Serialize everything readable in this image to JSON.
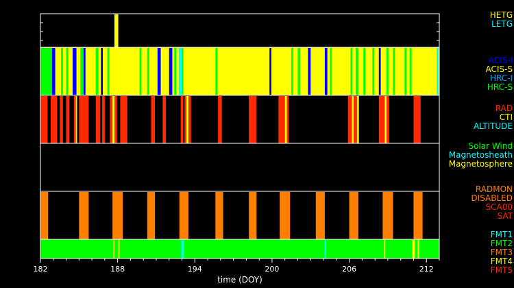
{
  "chart_data": {
    "type": "timeline",
    "xlabel": "time (DOY)",
    "xlim": [
      182,
      213
    ],
    "xticks": [
      182,
      188,
      194,
      200,
      206,
      212
    ],
    "panels": [
      {
        "key": "grating",
        "legend": [
          {
            "label": "HETG",
            "color": "#ffff00"
          },
          {
            "label": "LETG",
            "color": "#00ffff"
          }
        ],
        "background": null,
        "intervals": [
          {
            "start": 187.75,
            "end": 188.05,
            "color": "#ffff00"
          }
        ]
      },
      {
        "key": "instrument",
        "legend": [
          {
            "label": "ACIS-I",
            "color": "#0000ff"
          },
          {
            "label": "ACIS-S",
            "color": "#ffff00"
          },
          {
            "label": "HRC-I",
            "color": "#00aaff"
          },
          {
            "label": "HRC-S",
            "color": "#00ff00"
          }
        ],
        "background": "#ffff00",
        "intervals": [
          {
            "start": 182.0,
            "end": 182.9,
            "color": "#00ff00"
          },
          {
            "start": 182.9,
            "end": 183.15,
            "color": "#0000ff"
          },
          {
            "start": 183.6,
            "end": 183.75,
            "color": "#00ff00"
          },
          {
            "start": 184.0,
            "end": 184.15,
            "color": "#00ff00"
          },
          {
            "start": 184.5,
            "end": 184.8,
            "color": "#0000ff"
          },
          {
            "start": 185.1,
            "end": 185.35,
            "color": "#00ff00"
          },
          {
            "start": 185.35,
            "end": 185.5,
            "color": "#0000ff"
          },
          {
            "start": 186.3,
            "end": 186.5,
            "color": "#00ff00"
          },
          {
            "start": 186.7,
            "end": 186.85,
            "color": "#0000ff"
          },
          {
            "start": 187.2,
            "end": 187.35,
            "color": "#00ff00"
          },
          {
            "start": 189.7,
            "end": 189.85,
            "color": "#00ff00"
          },
          {
            "start": 190.3,
            "end": 190.45,
            "color": "#00ff00"
          },
          {
            "start": 191.1,
            "end": 191.35,
            "color": "#0000ff"
          },
          {
            "start": 192.0,
            "end": 192.25,
            "color": "#0000ff"
          },
          {
            "start": 192.4,
            "end": 192.55,
            "color": "#00ff00"
          },
          {
            "start": 192.75,
            "end": 193.0,
            "color": "#00ffff"
          },
          {
            "start": 193.0,
            "end": 193.1,
            "color": "#00ff00"
          },
          {
            "start": 195.6,
            "end": 195.75,
            "color": "#00ff00"
          },
          {
            "start": 199.8,
            "end": 199.95,
            "color": "#0000ff"
          },
          {
            "start": 201.5,
            "end": 201.65,
            "color": "#00ff00"
          },
          {
            "start": 202.0,
            "end": 202.2,
            "color": "#00ff00"
          },
          {
            "start": 202.8,
            "end": 203.0,
            "color": "#0000ff"
          },
          {
            "start": 204.1,
            "end": 204.3,
            "color": "#0000ff"
          },
          {
            "start": 204.5,
            "end": 204.65,
            "color": "#00ff00"
          },
          {
            "start": 206.1,
            "end": 206.25,
            "color": "#00ff00"
          },
          {
            "start": 206.5,
            "end": 206.7,
            "color": "#00ff00"
          },
          {
            "start": 207.1,
            "end": 207.25,
            "color": "#00ff00"
          },
          {
            "start": 207.8,
            "end": 207.95,
            "color": "#00ff00"
          },
          {
            "start": 208.3,
            "end": 208.45,
            "color": "#0000ff"
          },
          {
            "start": 208.9,
            "end": 209.05,
            "color": "#00ff00"
          },
          {
            "start": 209.4,
            "end": 209.55,
            "color": "#00ff00"
          },
          {
            "start": 210.3,
            "end": 210.45,
            "color": "#00ff00"
          },
          {
            "start": 210.7,
            "end": 210.85,
            "color": "#00ff00"
          },
          {
            "start": 212.8,
            "end": 212.95,
            "color": "#00ffff"
          }
        ]
      },
      {
        "key": "radiation",
        "legend": [
          {
            "label": "RAD",
            "color": "#ff2a00"
          },
          {
            "label": "CTI",
            "color": "#ffff00"
          },
          {
            "label": "ALTITUDE",
            "color": "#00ffff"
          }
        ],
        "background": null,
        "intervals": [
          {
            "start": 182.0,
            "end": 182.55,
            "color": "#ff2a00"
          },
          {
            "start": 182.8,
            "end": 183.3,
            "color": "#ff2a00"
          },
          {
            "start": 183.5,
            "end": 183.75,
            "color": "#ff2a00"
          },
          {
            "start": 184.0,
            "end": 184.25,
            "color": "#ff2a00"
          },
          {
            "start": 184.6,
            "end": 184.75,
            "color": "#ff2a00"
          },
          {
            "start": 184.75,
            "end": 184.85,
            "color": "#ffff00"
          },
          {
            "start": 185.0,
            "end": 185.75,
            "color": "#ff2a00"
          },
          {
            "start": 186.3,
            "end": 186.65,
            "color": "#ff2a00"
          },
          {
            "start": 186.8,
            "end": 187.0,
            "color": "#ff2a00"
          },
          {
            "start": 187.4,
            "end": 187.6,
            "color": "#ff2a00"
          },
          {
            "start": 187.6,
            "end": 187.75,
            "color": "#ffff00"
          },
          {
            "start": 187.75,
            "end": 187.95,
            "color": "#ff2a00"
          },
          {
            "start": 188.2,
            "end": 188.75,
            "color": "#ff2a00"
          },
          {
            "start": 190.6,
            "end": 190.9,
            "color": "#ff2a00"
          },
          {
            "start": 191.5,
            "end": 191.75,
            "color": "#ff2a00"
          },
          {
            "start": 192.9,
            "end": 193.1,
            "color": "#ff2a00"
          },
          {
            "start": 193.2,
            "end": 193.35,
            "color": "#ff2a00"
          },
          {
            "start": 193.35,
            "end": 193.5,
            "color": "#ffff00"
          },
          {
            "start": 193.5,
            "end": 193.7,
            "color": "#ff2a00"
          },
          {
            "start": 195.8,
            "end": 196.1,
            "color": "#ff2a00"
          },
          {
            "start": 198.2,
            "end": 198.8,
            "color": "#ff2a00"
          },
          {
            "start": 200.5,
            "end": 201.0,
            "color": "#ff2a00"
          },
          {
            "start": 201.0,
            "end": 201.15,
            "color": "#ffff00"
          },
          {
            "start": 201.15,
            "end": 201.3,
            "color": "#ff2a00"
          },
          {
            "start": 205.9,
            "end": 206.2,
            "color": "#ff2a00"
          },
          {
            "start": 206.2,
            "end": 206.35,
            "color": "#ffff00"
          },
          {
            "start": 206.35,
            "end": 206.6,
            "color": "#ff2a00"
          },
          {
            "start": 206.6,
            "end": 206.75,
            "color": "#ffff00"
          },
          {
            "start": 208.3,
            "end": 208.75,
            "color": "#ff2a00"
          },
          {
            "start": 208.75,
            "end": 208.9,
            "color": "#ffff00"
          },
          {
            "start": 208.9,
            "end": 209.1,
            "color": "#ff2a00"
          },
          {
            "start": 211.0,
            "end": 211.55,
            "color": "#ff2a00"
          }
        ]
      },
      {
        "key": "region",
        "legend": [
          {
            "label": "Solar Wind",
            "color": "#00ff00"
          },
          {
            "label": "Magnetosheath",
            "color": "#00ffff"
          },
          {
            "label": "Magnetosphere",
            "color": "#ffff00"
          }
        ],
        "background": null,
        "intervals": []
      },
      {
        "key": "radmon",
        "legend": [
          {
            "label": "RADMON",
            "color": "#ff7f00"
          },
          {
            "label": "DISABLED",
            "color": "#ff7f00"
          },
          {
            "label": "SCA00",
            "color": "#ff2a00"
          },
          {
            "label": "SAT",
            "color": "#ff2a00"
          }
        ],
        "background": null,
        "intervals": [
          {
            "start": 182.0,
            "end": 182.6,
            "color": "#ff7f00"
          },
          {
            "start": 185.0,
            "end": 185.75,
            "color": "#ff7f00"
          },
          {
            "start": 187.6,
            "end": 188.4,
            "color": "#ff7f00"
          },
          {
            "start": 190.3,
            "end": 190.9,
            "color": "#ff7f00"
          },
          {
            "start": 192.8,
            "end": 193.5,
            "color": "#ff7f00"
          },
          {
            "start": 195.6,
            "end": 196.2,
            "color": "#ff7f00"
          },
          {
            "start": 198.2,
            "end": 198.8,
            "color": "#ff7f00"
          },
          {
            "start": 200.6,
            "end": 201.4,
            "color": "#ff7f00"
          },
          {
            "start": 203.4,
            "end": 204.1,
            "color": "#ff7f00"
          },
          {
            "start": 206.0,
            "end": 206.7,
            "color": "#ff7f00"
          },
          {
            "start": 208.6,
            "end": 209.4,
            "color": "#ff7f00"
          },
          {
            "start": 211.0,
            "end": 211.7,
            "color": "#ff7f00"
          }
        ]
      },
      {
        "key": "format",
        "legend": [
          {
            "label": "FMT1",
            "color": "#00ffff"
          },
          {
            "label": "FMT2",
            "color": "#00ff00"
          },
          {
            "label": "FMT3",
            "color": "#ff7f00"
          },
          {
            "label": "FMT4",
            "color": "#ffff00"
          },
          {
            "label": "FMT5",
            "color": "#ff2a00"
          }
        ],
        "background": "#00ff00",
        "intervals": [
          {
            "start": 187.65,
            "end": 187.75,
            "color": "#ffff00"
          },
          {
            "start": 188.05,
            "end": 188.15,
            "color": "#ffff00"
          },
          {
            "start": 192.95,
            "end": 193.15,
            "color": "#00ffff"
          },
          {
            "start": 204.1,
            "end": 204.2,
            "color": "#00ffff"
          },
          {
            "start": 208.7,
            "end": 208.8,
            "color": "#ffff00"
          },
          {
            "start": 210.9,
            "end": 211.1,
            "color": "#ffff00"
          },
          {
            "start": 211.3,
            "end": 211.45,
            "color": "#ffff00"
          }
        ]
      }
    ]
  }
}
